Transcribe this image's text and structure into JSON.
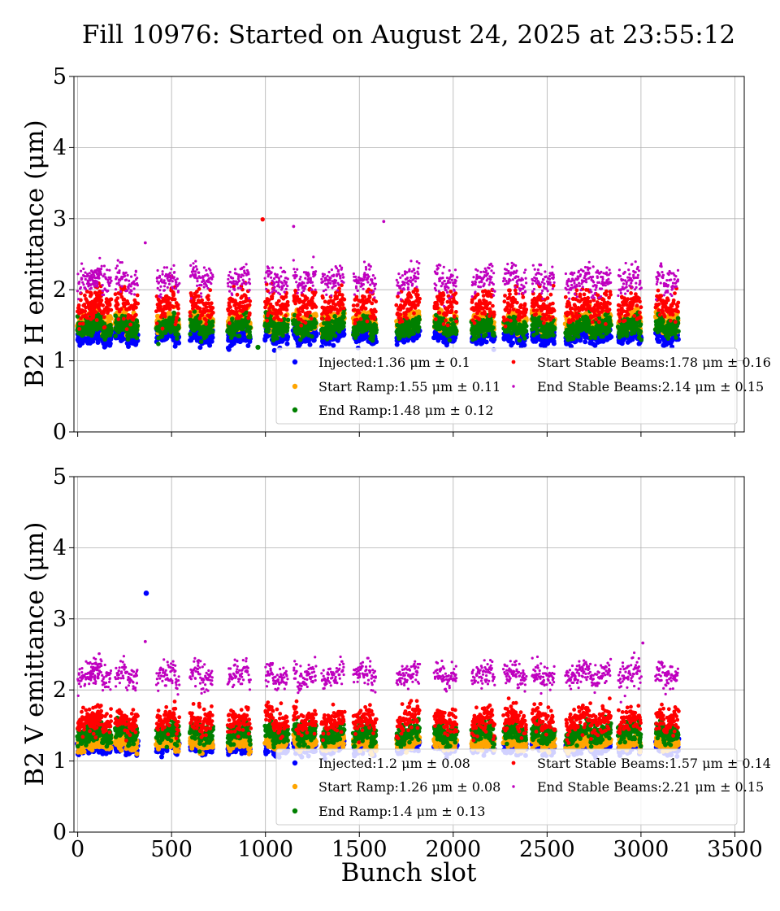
{
  "chart_data": {
    "type": "scatter",
    "title": "Fill 10976: Started on August 24, 2025 at 23:55:12",
    "xlabel": "Bunch slot",
    "xlim": [
      -20,
      3550
    ],
    "xticks": [
      0,
      500,
      1000,
      1500,
      2000,
      2500,
      3000,
      3500
    ],
    "panels": [
      {
        "ylabel": "B2 H emittance (μm)",
        "ylim": [
          0,
          5
        ],
        "yticks": [
          0,
          1,
          2,
          3,
          4,
          5
        ],
        "grid": true,
        "legend_position": "lower-right",
        "series": [
          {
            "name": "Injected",
            "legend": "Injected:1.36 μm ± 0.1",
            "color": "#0000ff",
            "mean": 1.36,
            "std": 0.1
          },
          {
            "name": "Start Ramp",
            "legend": "Start Ramp:1.55 μm ± 0.11",
            "color": "#ffa500",
            "mean": 1.55,
            "std": 0.11
          },
          {
            "name": "End Ramp",
            "legend": "End Ramp:1.48 μm ± 0.12",
            "color": "#008000",
            "mean": 1.48,
            "std": 0.12
          },
          {
            "name": "Start Stable Beams",
            "legend": "Start Stable Beams:1.78 μm ± 0.16",
            "color": "#ff0000",
            "mean": 1.78,
            "std": 0.16
          },
          {
            "name": "End Stable Beams",
            "legend": "End Stable Beams:2.14 μm ± 0.15",
            "color": "#bf00bf",
            "mean": 2.14,
            "std": 0.15
          }
        ]
      },
      {
        "ylabel": "B2 V emittance (μm)",
        "ylim": [
          0,
          5
        ],
        "yticks": [
          0,
          1,
          2,
          3,
          4,
          5
        ],
        "grid": true,
        "legend_position": "lower-right",
        "series": [
          {
            "name": "Injected",
            "legend": "Injected:1.2 μm ± 0.08",
            "color": "#0000ff",
            "mean": 1.2,
            "std": 0.08
          },
          {
            "name": "Start Ramp",
            "legend": "Start Ramp:1.26 μm ± 0.08",
            "color": "#ffa500",
            "mean": 1.26,
            "std": 0.08
          },
          {
            "name": "End Ramp",
            "legend": "End Ramp:1.4 μm ± 0.13",
            "color": "#008000",
            "mean": 1.4,
            "std": 0.13
          },
          {
            "name": "Start Stable Beams",
            "legend": "Start Stable Beams:1.57 μm ± 0.14",
            "color": "#ff0000",
            "mean": 1.57,
            "std": 0.14
          },
          {
            "name": "End Stable Beams",
            "legend": "End Stable Beams:2.21 μm ± 0.15",
            "color": "#bf00bf",
            "mean": 2.21,
            "std": 0.15
          }
        ]
      }
    ],
    "train_starts": [
      0,
      60,
      200,
      420,
      600,
      800,
      1000,
      1150,
      1300,
      1470,
      1700,
      1900,
      2100,
      2270,
      2420,
      2600,
      2720,
      2880,
      3080
    ],
    "train_length": 120,
    "last_slot": 3240,
    "outliers": [
      {
        "panel": 0,
        "series": "Start Stable Beams",
        "x": 985,
        "y": 2.99
      },
      {
        "panel": 0,
        "series": "End Stable Beams",
        "x": 1150,
        "y": 2.89
      },
      {
        "panel": 0,
        "series": "End Stable Beams",
        "x": 1630,
        "y": 2.96
      },
      {
        "panel": 0,
        "series": "End Stable Beams",
        "x": 360,
        "y": 2.66
      },
      {
        "panel": 0,
        "series": "End Ramp",
        "x": 960,
        "y": 1.19
      },
      {
        "panel": 1,
        "series": "Injected",
        "x": 365,
        "y": 3.36
      },
      {
        "panel": 1,
        "series": "End Stable Beams",
        "x": 3010,
        "y": 2.66
      },
      {
        "panel": 1,
        "series": "End Stable Beams",
        "x": 360,
        "y": 2.68
      }
    ]
  }
}
